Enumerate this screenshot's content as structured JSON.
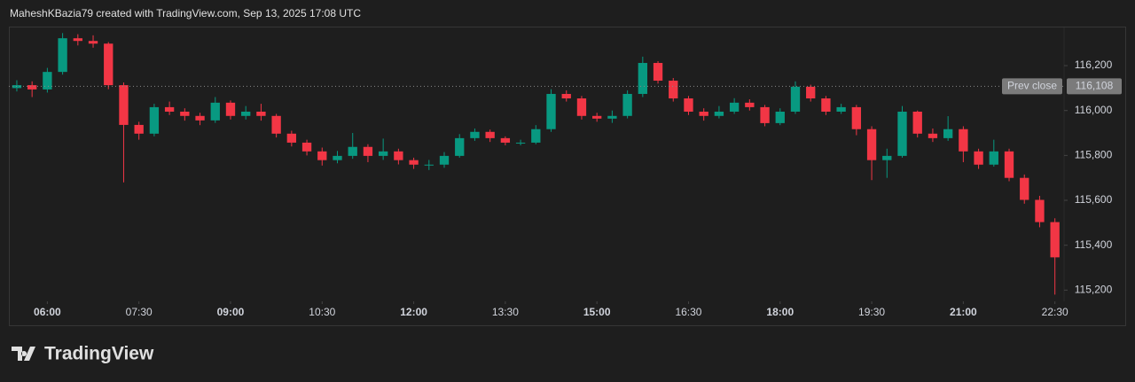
{
  "header": "MaheshKBazia79 created with TradingView.com, Sep 13, 2025 17:08 UTC",
  "logo": "TradingView",
  "chart_data": {
    "type": "candlestick",
    "up_color": "#089981",
    "down_color": "#f23645",
    "x": [
      5.5,
      5.75,
      6,
      6.25,
      6.5,
      6.75,
      7,
      7.25,
      7.5,
      7.75,
      8,
      8.25,
      8.5,
      8.75,
      9,
      9.25,
      9.5,
      9.75,
      10,
      10.25,
      10.5,
      10.75,
      11,
      11.25,
      11.5,
      11.75,
      12,
      12.25,
      12.5,
      12.75,
      13,
      13.25,
      13.5,
      13.75,
      14,
      14.25,
      14.5,
      14.75,
      15,
      15.25,
      15.5,
      15.75,
      16,
      16.25,
      16.5,
      16.75,
      17,
      17.25,
      17.5,
      17.75,
      18,
      18.25,
      18.5,
      18.75,
      19,
      19.25,
      19.5,
      19.75,
      20,
      20.25,
      20.5,
      20.75,
      21,
      21.25,
      21.5,
      21.75,
      22,
      22.25,
      22.5
    ],
    "open": [
      116100,
      116113,
      116094,
      116172,
      116322,
      116310,
      116298,
      116113,
      115936,
      115897,
      116015,
      115995,
      115976,
      115956,
      116035,
      115976,
      115995,
      115976,
      115897,
      115857,
      115818,
      115779,
      115798,
      115838,
      115798,
      115818,
      115779,
      115759,
      115759,
      115798,
      115877,
      115905,
      115877,
      115857,
      115857,
      115917,
      116074,
      116054,
      115976,
      115964,
      115976,
      116074,
      116212,
      116133,
      116054,
      115995,
      115976,
      115995,
      116035,
      116015,
      115944,
      115995,
      116106,
      116054,
      115995,
      116015,
      115917,
      115779,
      115798,
      115995,
      115897,
      115877,
      115917,
      115818,
      115759,
      115818,
      115700,
      115602,
      115503
    ],
    "high": [
      116135,
      116130,
      116190,
      116345,
      116340,
      116335,
      116305,
      116125,
      115950,
      116030,
      116040,
      116010,
      115990,
      116060,
      116045,
      116020,
      116030,
      115985,
      115910,
      115870,
      115835,
      115820,
      115900,
      115850,
      115875,
      115830,
      115790,
      115780,
      115815,
      115895,
      115920,
      115915,
      115885,
      115870,
      115935,
      116095,
      116090,
      116065,
      115990,
      116000,
      116090,
      116240,
      116220,
      116145,
      116065,
      116010,
      116020,
      116055,
      116050,
      116025,
      116010,
      116130,
      116115,
      116065,
      116030,
      116025,
      115930,
      115830,
      116020,
      116000,
      115920,
      115975,
      115930,
      115830,
      115870,
      115830,
      115715,
      115620,
      115520
    ],
    "low": [
      116085,
      116060,
      116080,
      116160,
      116290,
      116280,
      116095,
      115680,
      115870,
      115885,
      115980,
      115955,
      115935,
      115945,
      115960,
      115960,
      115955,
      115880,
      115840,
      115800,
      115755,
      115765,
      115785,
      115770,
      115780,
      115760,
      115740,
      115735,
      115745,
      115790,
      115865,
      115860,
      115845,
      115845,
      115850,
      115905,
      116040,
      115960,
      115950,
      115945,
      115965,
      116060,
      116120,
      116040,
      115980,
      115955,
      115965,
      115985,
      116000,
      115930,
      115935,
      115985,
      116040,
      115980,
      115985,
      115890,
      115690,
      115700,
      115790,
      115880,
      115860,
      115865,
      115770,
      115740,
      115750,
      115685,
      115585,
      115480,
      115180
    ],
    "close": [
      116113,
      116094,
      116172,
      116322,
      116310,
      116298,
      116113,
      115936,
      115897,
      116015,
      115995,
      115976,
      115956,
      116035,
      115976,
      115995,
      115976,
      115897,
      115857,
      115818,
      115779,
      115798,
      115838,
      115798,
      115818,
      115779,
      115759,
      115759,
      115798,
      115877,
      115905,
      115877,
      115857,
      115857,
      115917,
      116074,
      116054,
      115976,
      115964,
      115976,
      116074,
      116212,
      116133,
      116054,
      115995,
      115976,
      115995,
      116035,
      116015,
      115944,
      115995,
      116106,
      116054,
      115995,
      116015,
      115917,
      115779,
      115798,
      115995,
      115897,
      115877,
      115917,
      115818,
      115759,
      115818,
      115700,
      115602,
      115503,
      115346
    ],
    "xlim": [
      5.37,
      22.65
    ],
    "xticks": [
      {
        "value": 6,
        "label": "06:00"
      },
      {
        "value": 7.5,
        "label": "07:30"
      },
      {
        "value": 9,
        "label": "09:00"
      },
      {
        "value": 10.5,
        "label": "10:30"
      },
      {
        "value": 12,
        "label": "12:00"
      },
      {
        "value": 13.5,
        "label": "13:30"
      },
      {
        "value": 15,
        "label": "15:00"
      },
      {
        "value": 16.5,
        "label": "16:30"
      },
      {
        "value": 18,
        "label": "18:00"
      },
      {
        "value": 19.5,
        "label": "19:30"
      },
      {
        "value": 21,
        "label": "21:00"
      },
      {
        "value": 22.5,
        "label": "22:30"
      }
    ],
    "ylim": [
      115150,
      116370
    ],
    "yticks": [
      {
        "value": 115200,
        "label": "115,200"
      },
      {
        "value": 115400,
        "label": "115,400"
      },
      {
        "value": 115600,
        "label": "115,600"
      },
      {
        "value": 115800,
        "label": "115,800"
      },
      {
        "value": 116000,
        "label": "116,000"
      },
      {
        "value": 116200,
        "label": "116,200"
      }
    ],
    "prev_close": {
      "label": "Prev close",
      "value": 116108,
      "value_label": "116,108"
    }
  }
}
